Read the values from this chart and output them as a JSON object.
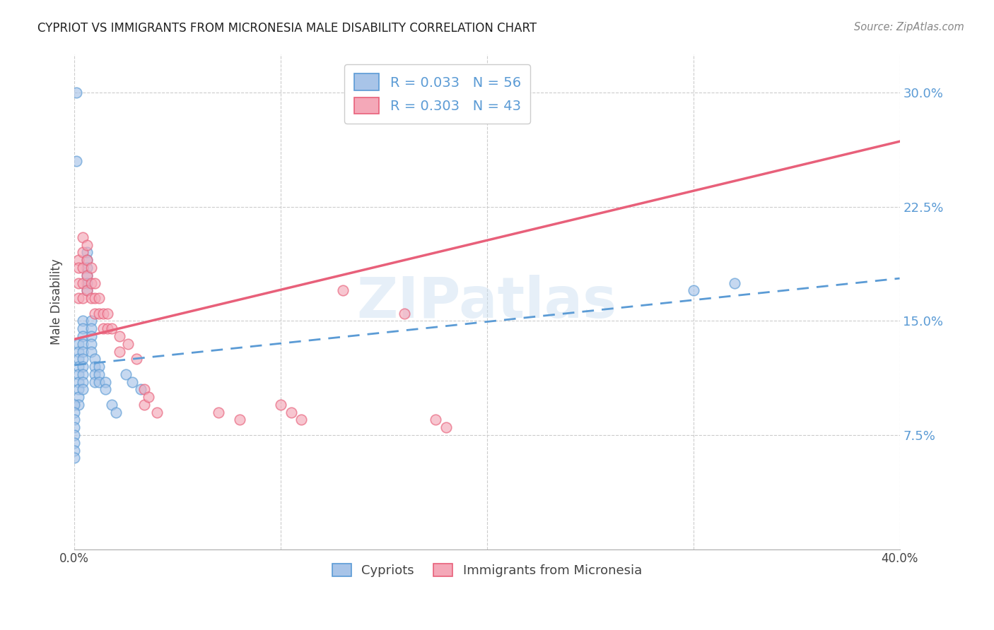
{
  "title": "CYPRIOT VS IMMIGRANTS FROM MICRONESIA MALE DISABILITY CORRELATION CHART",
  "source": "Source: ZipAtlas.com",
  "ylabel": "Male Disability",
  "ytick_labels": [
    "7.5%",
    "15.0%",
    "22.5%",
    "30.0%"
  ],
  "ytick_values": [
    0.075,
    0.15,
    0.225,
    0.3
  ],
  "xlim": [
    0.0,
    0.4
  ],
  "ylim": [
    0.0,
    0.325
  ],
  "blue_color": "#a8c4e8",
  "pink_color": "#f4a8b8",
  "blue_edge_color": "#5b9bd5",
  "pink_edge_color": "#e8607a",
  "blue_line_color": "#5b9bd5",
  "pink_line_color": "#e8607a",
  "watermark": "ZIPatlas",
  "blue_line_x": [
    0.0,
    0.4
  ],
  "blue_line_y": [
    0.121,
    0.178
  ],
  "pink_line_x": [
    0.0,
    0.4
  ],
  "pink_line_y": [
    0.138,
    0.268
  ],
  "blue_points_x": [
    0.002,
    0.002,
    0.002,
    0.002,
    0.002,
    0.002,
    0.002,
    0.002,
    0.002,
    0.004,
    0.004,
    0.004,
    0.004,
    0.004,
    0.004,
    0.004,
    0.004,
    0.004,
    0.004,
    0.006,
    0.006,
    0.006,
    0.006,
    0.006,
    0.006,
    0.008,
    0.008,
    0.008,
    0.008,
    0.008,
    0.01,
    0.01,
    0.01,
    0.01,
    0.012,
    0.012,
    0.012,
    0.015,
    0.015,
    0.018,
    0.02,
    0.025,
    0.028,
    0.032,
    0.0,
    0.0,
    0.0,
    0.0,
    0.0,
    0.0,
    0.0,
    0.0,
    0.3,
    0.32,
    0.001,
    0.001
  ],
  "blue_points_y": [
    0.135,
    0.13,
    0.125,
    0.12,
    0.115,
    0.11,
    0.105,
    0.1,
    0.095,
    0.15,
    0.145,
    0.14,
    0.135,
    0.13,
    0.125,
    0.12,
    0.115,
    0.11,
    0.105,
    0.195,
    0.19,
    0.185,
    0.18,
    0.175,
    0.17,
    0.15,
    0.145,
    0.14,
    0.135,
    0.13,
    0.125,
    0.12,
    0.115,
    0.11,
    0.12,
    0.115,
    0.11,
    0.11,
    0.105,
    0.095,
    0.09,
    0.115,
    0.11,
    0.105,
    0.095,
    0.09,
    0.085,
    0.08,
    0.075,
    0.07,
    0.065,
    0.06,
    0.17,
    0.175,
    0.3,
    0.255
  ],
  "pink_points_x": [
    0.002,
    0.002,
    0.002,
    0.002,
    0.004,
    0.004,
    0.004,
    0.004,
    0.004,
    0.006,
    0.006,
    0.006,
    0.006,
    0.008,
    0.008,
    0.008,
    0.01,
    0.01,
    0.01,
    0.012,
    0.012,
    0.014,
    0.014,
    0.016,
    0.016,
    0.018,
    0.022,
    0.022,
    0.026,
    0.03,
    0.034,
    0.034,
    0.036,
    0.04,
    0.07,
    0.08,
    0.1,
    0.105,
    0.11,
    0.13,
    0.16,
    0.175,
    0.18
  ],
  "pink_points_y": [
    0.19,
    0.185,
    0.175,
    0.165,
    0.205,
    0.195,
    0.185,
    0.175,
    0.165,
    0.2,
    0.19,
    0.18,
    0.17,
    0.185,
    0.175,
    0.165,
    0.175,
    0.165,
    0.155,
    0.165,
    0.155,
    0.155,
    0.145,
    0.155,
    0.145,
    0.145,
    0.14,
    0.13,
    0.135,
    0.125,
    0.105,
    0.095,
    0.1,
    0.09,
    0.09,
    0.085,
    0.095,
    0.09,
    0.085,
    0.17,
    0.155,
    0.085,
    0.08
  ]
}
